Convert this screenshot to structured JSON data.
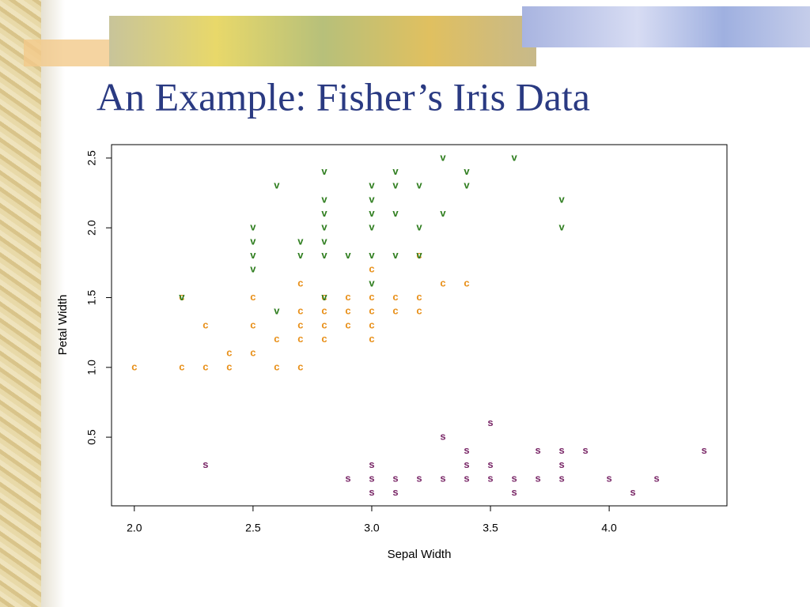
{
  "chart_data": {
    "type": "scatter",
    "title": "An Example: Fisher’s Iris Data",
    "x_label": "Sepal Width",
    "y_label": "Petal Width",
    "xlim": [
      1.904,
      4.496
    ],
    "ylim": [
      0.008,
      2.596
    ],
    "xticks": [
      {
        "value": 2,
        "label": "2.0"
      },
      2.5,
      {
        "value": 3,
        "label": "3.0"
      },
      3.5,
      {
        "value": 4,
        "label": "4.0"
      }
    ],
    "yticks": [
      0.5,
      {
        "value": 1,
        "label": "1.0"
      },
      1.5,
      {
        "value": 2,
        "label": "2.0"
      },
      2.5
    ],
    "series": [
      {
        "marker": "s",
        "color": "#7a2868",
        "x": [
          3.3,
          3.5,
          3.4,
          3.7,
          3.8,
          3.9,
          4.4,
          2.3,
          3.0,
          3.4,
          3.5,
          3.8,
          2.9,
          3.0,
          3.1,
          3.2,
          3.3,
          3.4,
          3.5,
          3.6,
          3.7,
          3.8,
          4.0,
          4.2,
          3.0,
          3.1,
          3.6,
          4.1
        ],
        "y": [
          0.5,
          0.6,
          0.4,
          0.4,
          0.4,
          0.4,
          0.4,
          0.3,
          0.3,
          0.3,
          0.3,
          0.3,
          0.2,
          0.2,
          0.2,
          0.2,
          0.2,
          0.2,
          0.2,
          0.2,
          0.2,
          0.2,
          0.2,
          0.2,
          0.1,
          0.1,
          0.1,
          0.1
        ]
      },
      {
        "marker": "c",
        "color": "#e8901a",
        "x": [
          2.0,
          2.2,
          2.3,
          2.4,
          2.6,
          2.7,
          2.4,
          2.5,
          2.6,
          2.7,
          2.8,
          3.0,
          2.3,
          2.5,
          2.7,
          2.8,
          2.9,
          3.0,
          2.7,
          2.8,
          2.9,
          3.0,
          3.1,
          3.2,
          2.2,
          2.5,
          2.8,
          2.9,
          3.0,
          3.1,
          3.2,
          2.7,
          3.3,
          3.4,
          3.0,
          3.2
        ],
        "y": [
          1.0,
          1.0,
          1.0,
          1.0,
          1.0,
          1.0,
          1.1,
          1.1,
          1.2,
          1.2,
          1.2,
          1.2,
          1.3,
          1.3,
          1.3,
          1.3,
          1.3,
          1.3,
          1.4,
          1.4,
          1.4,
          1.4,
          1.4,
          1.4,
          1.5,
          1.5,
          1.5,
          1.5,
          1.5,
          1.5,
          1.5,
          1.6,
          1.6,
          1.6,
          1.7,
          1.8
        ]
      },
      {
        "marker": "v",
        "color": "#2e7d1e",
        "x": [
          3.3,
          3.6,
          2.8,
          3.1,
          3.4,
          2.6,
          3.0,
          3.1,
          3.2,
          3.4,
          2.8,
          3.0,
          3.8,
          2.8,
          3.0,
          3.1,
          3.3,
          2.5,
          2.8,
          3.0,
          3.2,
          3.8,
          2.5,
          2.7,
          2.8,
          2.5,
          2.7,
          2.8,
          2.9,
          3.0,
          3.1,
          3.2,
          2.5,
          3.0,
          2.2,
          2.8,
          2.6
        ],
        "y": [
          2.5,
          2.5,
          2.4,
          2.4,
          2.4,
          2.3,
          2.3,
          2.3,
          2.3,
          2.3,
          2.2,
          2.2,
          2.2,
          2.1,
          2.1,
          2.1,
          2.1,
          2.0,
          2.0,
          2.0,
          2.0,
          2.0,
          1.9,
          1.9,
          1.9,
          1.8,
          1.8,
          1.8,
          1.8,
          1.8,
          1.8,
          1.8,
          1.7,
          1.6,
          1.5,
          1.5,
          1.4
        ]
      }
    ]
  }
}
